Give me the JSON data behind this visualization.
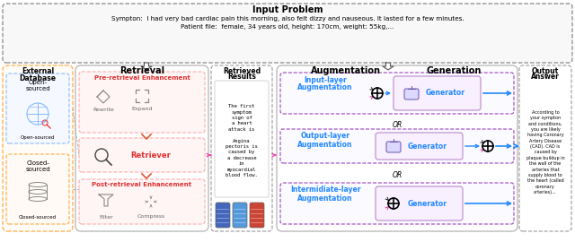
{
  "title": "Input Problem",
  "symptom_line1": "Sympton:  I had very bad cardiac pain this morning, also felt dizzy and nauseous. It lasted for a few minutes.",
  "symptom_line2": "Patient file:  female, 34 years old, height: 170cm, weight: 55kg,...",
  "output_text": "According to\nyour sympton\nand conditions,\nyou are likely\nhaving Coronary\nArtery Disease\n(CAD). CAD is\ncaused by\nplaque buildup in\nthe wall of the\narteries that\nsupply blood to\nthe heart (called\ncoronary\narteries)...",
  "retrieved_text": "The first\nsymptom\nsign of\na heart\nattack is\n \nAngina\npectoris is\ncaused by\na decrease\nin\nmyocardial\nblood flow.",
  "pre_color": "#e03030",
  "post_color": "#e03030",
  "retriever_color": "#e03030",
  "aug_color": "#2288ff",
  "gen_color": "#2288ff",
  "arrow_blue": "#2288ff",
  "arrow_pink": "#ee44aa",
  "arrow_gray": "#555555",
  "col_orange": "#ffaa44",
  "col_blue_light": "#88bbff",
  "col_gray": "#999999",
  "col_purple": "#9944bb",
  "col_red_light": "#ffcccc",
  "col_purple_light": "#eeeeff"
}
